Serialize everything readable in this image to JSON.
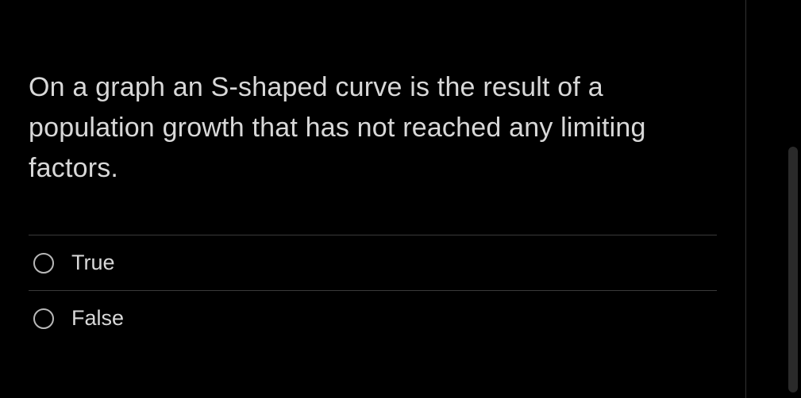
{
  "question": {
    "text": "On a graph an S-shaped curve is the result of a population growth that has not reached any limiting factors.",
    "options": [
      {
        "label": "True",
        "selected": false
      },
      {
        "label": "False",
        "selected": false
      }
    ]
  },
  "colors": {
    "background": "#000000",
    "text_primary": "#d8d8d8",
    "border": "#3a3a3a",
    "radio_border": "#b8b8b8",
    "frame_border": "#333333",
    "scrollbar_thumb": "#2a2a2a"
  },
  "typography": {
    "question_fontsize": 34,
    "option_fontsize": 27,
    "font_weight": 300
  }
}
